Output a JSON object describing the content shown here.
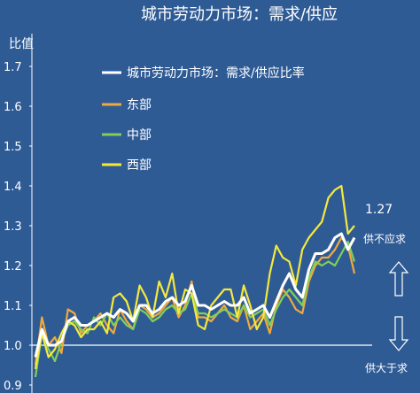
{
  "chart_data": {
    "type": "line",
    "title": "城市劳动力市场：需求/供应",
    "ylabel": "比值",
    "xlabel": "",
    "ylim": [
      0.9,
      1.7
    ],
    "yticks": [
      "0.9",
      "1.0",
      "1.1",
      "1.2",
      "1.3",
      "1.4",
      "1.5",
      "1.6",
      "1.7"
    ],
    "grid": false,
    "legend_position": "top-center",
    "x": [
      1,
      2,
      3,
      4,
      5,
      6,
      7,
      8,
      9,
      10,
      11,
      12,
      13,
      14,
      15,
      16,
      17,
      18,
      19,
      20,
      21,
      22,
      23,
      24,
      25,
      26,
      27,
      28,
      29,
      30,
      31,
      32,
      33,
      34,
      35,
      36,
      37,
      38,
      39,
      40,
      41,
      42,
      43,
      44,
      45,
      46,
      47,
      48,
      49,
      50
    ],
    "series": [
      {
        "name": "城市劳动力市场：需求/供应比率",
        "color": "#ffffff",
        "values": [
          0.97,
          1.04,
          1.0,
          1.0,
          1.01,
          1.06,
          1.07,
          1.05,
          1.05,
          1.06,
          1.07,
          1.08,
          1.07,
          1.09,
          1.08,
          1.06,
          1.1,
          1.1,
          1.08,
          1.09,
          1.11,
          1.12,
          1.1,
          1.11,
          1.15,
          1.1,
          1.1,
          1.09,
          1.1,
          1.11,
          1.1,
          1.1,
          1.12,
          1.08,
          1.09,
          1.1,
          1.07,
          1.11,
          1.15,
          1.18,
          1.14,
          1.12,
          1.19,
          1.23,
          1.23,
          1.24,
          1.27,
          1.28,
          1.24,
          1.27
        ]
      },
      {
        "name": "东部",
        "color": "#f2a93b",
        "values": [
          0.95,
          1.07,
          1.0,
          1.02,
          0.98,
          1.09,
          1.08,
          1.03,
          1.05,
          1.06,
          1.08,
          1.05,
          1.03,
          1.09,
          1.06,
          1.04,
          1.1,
          1.09,
          1.07,
          1.08,
          1.1,
          1.12,
          1.07,
          1.1,
          1.16,
          1.07,
          1.07,
          1.06,
          1.08,
          1.1,
          1.07,
          1.06,
          1.1,
          1.04,
          1.06,
          1.08,
          1.03,
          1.1,
          1.14,
          1.12,
          1.09,
          1.08,
          1.16,
          1.2,
          1.22,
          1.22,
          1.24,
          1.27,
          1.25,
          1.18
        ]
      },
      {
        "name": "中部",
        "color": "#7fcf5a",
        "values": [
          0.92,
          1.03,
          0.99,
          0.96,
          1.01,
          1.05,
          1.06,
          1.04,
          1.03,
          1.07,
          1.05,
          1.08,
          1.05,
          1.07,
          1.05,
          1.04,
          1.09,
          1.08,
          1.06,
          1.07,
          1.09,
          1.1,
          1.08,
          1.09,
          1.13,
          1.08,
          1.08,
          1.07,
          1.08,
          1.09,
          1.08,
          1.07,
          1.1,
          1.07,
          1.08,
          1.09,
          1.05,
          1.09,
          1.12,
          1.14,
          1.12,
          1.1,
          1.17,
          1.21,
          1.2,
          1.21,
          1.2,
          1.23,
          1.26,
          1.21
        ]
      },
      {
        "name": "西部",
        "color": "#f5e93c",
        "values": [
          0.94,
          1.03,
          0.97,
          0.99,
          1.03,
          1.06,
          1.05,
          1.02,
          1.04,
          1.04,
          1.06,
          1.03,
          1.12,
          1.13,
          1.11,
          1.06,
          1.15,
          1.12,
          1.07,
          1.16,
          1.12,
          1.18,
          1.08,
          1.14,
          1.13,
          1.05,
          1.04,
          1.1,
          1.12,
          1.14,
          1.14,
          1.07,
          1.15,
          1.1,
          1.04,
          1.07,
          1.18,
          1.25,
          1.22,
          1.21,
          1.15,
          1.24,
          1.27,
          1.29,
          1.31,
          1.37,
          1.39,
          1.4,
          1.28,
          1.3
        ]
      }
    ],
    "reference_line": 1.0,
    "annotations": {
      "last_value": "1.27",
      "above": "供不应求",
      "below": "供大于求"
    }
  }
}
